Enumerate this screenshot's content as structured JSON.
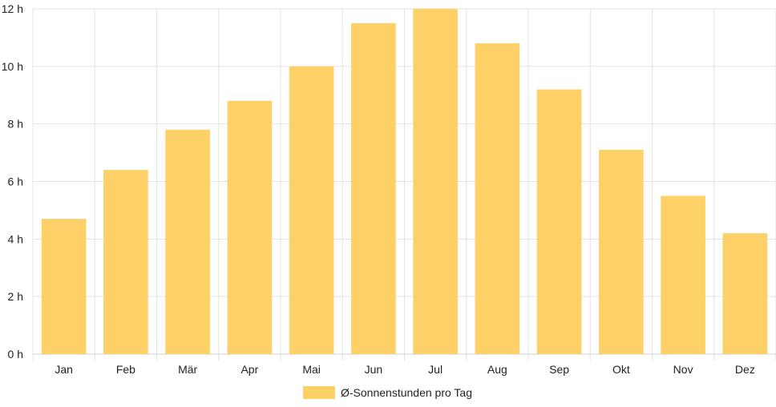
{
  "chart_data": {
    "type": "bar",
    "categories": [
      "Jan",
      "Feb",
      "Mär",
      "Apr",
      "Mai",
      "Jun",
      "Jul",
      "Aug",
      "Sep",
      "Okt",
      "Nov",
      "Dez"
    ],
    "series": [
      {
        "name": "Ø-Sonnenstunden pro Tag",
        "values": [
          4.7,
          6.4,
          7.8,
          8.8,
          10.0,
          11.5,
          12.0,
          10.8,
          9.2,
          7.1,
          5.5,
          4.2
        ],
        "color": "#fdd068"
      }
    ],
    "y_ticks": [
      "0 h",
      "2 h",
      "4 h",
      "6 h",
      "8 h",
      "10 h",
      "12 h"
    ],
    "ylim": [
      0,
      12
    ],
    "grid": true,
    "legend_position": "bottom"
  }
}
